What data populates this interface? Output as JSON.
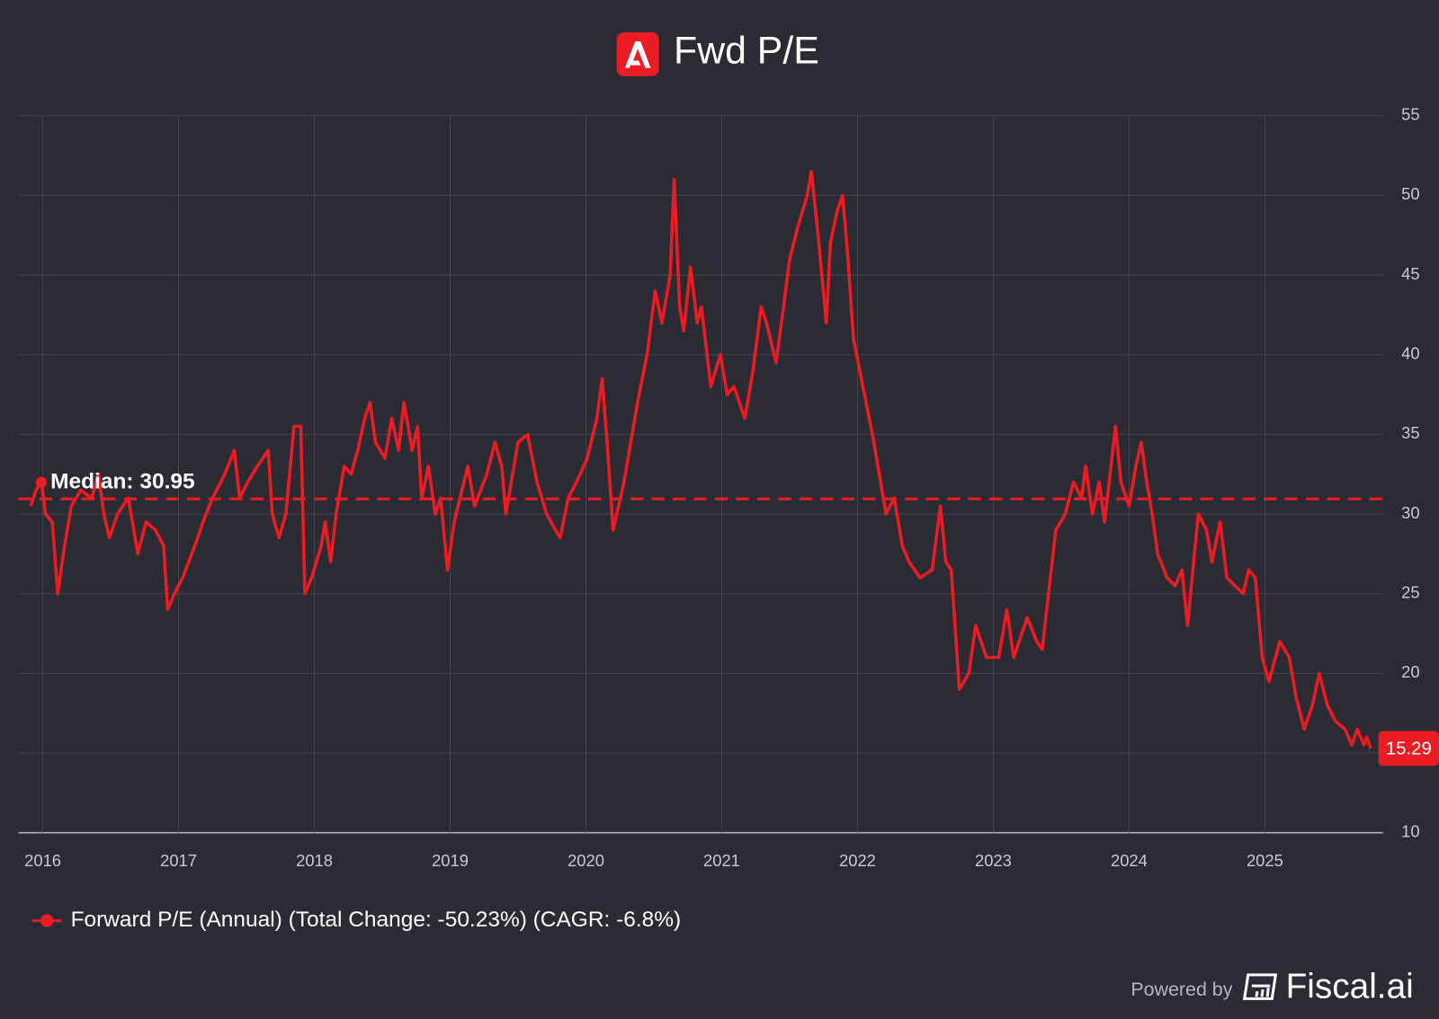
{
  "chart_data": {
    "type": "line",
    "title": "Fwd P/E",
    "xlim": [
      2015.82,
      2025.87
    ],
    "xticks": [
      2016,
      2017,
      2018,
      2019,
      2020,
      2021,
      2022,
      2023,
      2024,
      2025
    ],
    "ylim": [
      10,
      55
    ],
    "yticks": [
      10,
      15,
      20,
      25,
      30,
      35,
      40,
      45,
      50,
      55
    ],
    "grid": true,
    "median": {
      "value": 30.95,
      "label": "Median: 30.95"
    },
    "legend": "bottom-left",
    "x": [
      2015.91,
      2015.95,
      2015.99,
      2016.02,
      2016.07,
      2016.11,
      2016.16,
      2016.21,
      2016.28,
      2016.36,
      2016.41,
      2016.45,
      2016.49,
      2016.55,
      2016.63,
      2016.7,
      2016.76,
      2016.83,
      2016.89,
      2016.92,
      2016.97,
      2017.03,
      2017.12,
      2017.18,
      2017.25,
      2017.34,
      2017.41,
      2017.45,
      2017.51,
      2017.58,
      2017.66,
      2017.69,
      2017.74,
      2017.79,
      2017.85,
      2017.9,
      2017.93,
      2017.98,
      2018.05,
      2018.08,
      2018.12,
      2018.16,
      2018.22,
      2018.27,
      2018.32,
      2018.37,
      2018.41,
      2018.45,
      2018.52,
      2018.57,
      2018.62,
      2018.66,
      2018.72,
      2018.76,
      2018.79,
      2018.84,
      2018.89,
      2018.93,
      2018.98,
      2019.03,
      2019.13,
      2019.18,
      2019.27,
      2019.33,
      2019.38,
      2019.41,
      2019.5,
      2019.57,
      2019.64,
      2019.71,
      2019.81,
      2019.87,
      2019.93,
      2020.01,
      2020.08,
      2020.12,
      2020.16,
      2020.2,
      2020.28,
      2020.38,
      2020.45,
      2020.51,
      2020.56,
      2020.62,
      2020.65,
      2020.69,
      2020.72,
      2020.77,
      2020.82,
      2020.85,
      2020.92,
      2020.99,
      2021.04,
      2021.09,
      2021.17,
      2021.23,
      2021.29,
      2021.33,
      2021.4,
      2021.44,
      2021.5,
      2021.56,
      2021.63,
      2021.66,
      2021.71,
      2021.77,
      2021.8,
      2021.85,
      2021.89,
      2021.93,
      2021.97,
      2022.04,
      2022.11,
      2022.15,
      2022.21,
      2022.27,
      2022.33,
      2022.38,
      2022.46,
      2022.55,
      2022.61,
      2022.65,
      2022.69,
      2022.75,
      2022.82,
      2022.87,
      2022.95,
      2023.04,
      2023.1,
      2023.15,
      2023.25,
      2023.32,
      2023.36,
      2023.42,
      2023.46,
      2023.53,
      2023.59,
      2023.65,
      2023.68,
      2023.73,
      2023.78,
      2023.82,
      2023.88,
      2023.9,
      2023.94,
      2024.0,
      2024.05,
      2024.09,
      2024.13,
      2024.17,
      2024.21,
      2024.28,
      2024.34,
      2024.39,
      2024.43,
      2024.47,
      2024.51,
      2024.57,
      2024.61,
      2024.67,
      2024.72,
      2024.78,
      2024.84,
      2024.88,
      2024.93,
      2024.98,
      2025.03,
      2025.11,
      2025.18,
      2025.23,
      2025.29,
      2025.35,
      2025.4,
      2025.46,
      2025.52,
      2025.59,
      2025.64,
      2025.68,
      2025.73,
      2025.75,
      2025.78
    ],
    "series": [
      {
        "name": "Forward P/E (Annual) (Total Change: -50.23%) (CAGR: -6.8%)",
        "color": "#ec1c24",
        "values": [
          30.5,
          31.5,
          32,
          30,
          29.5,
          25,
          28,
          30.5,
          31.5,
          31,
          32.5,
          30,
          28.5,
          30,
          31,
          27.5,
          29.5,
          29,
          28,
          24,
          25,
          26,
          28,
          29.5,
          31,
          32.5,
          34,
          31,
          32,
          33,
          34,
          30,
          28.5,
          30,
          35.5,
          35.5,
          25,
          26,
          28,
          29.5,
          27,
          30,
          33,
          32.5,
          34,
          36,
          37,
          34.5,
          33.5,
          36,
          34,
          37,
          34,
          35.5,
          31,
          33,
          30,
          31,
          26.5,
          29.5,
          33,
          30.5,
          32.5,
          34.5,
          33,
          30,
          34.5,
          35,
          32,
          30,
          28.5,
          31,
          32,
          33.5,
          36,
          38.5,
          34,
          29,
          32,
          37,
          40,
          44,
          42,
          45,
          51,
          43,
          41.5,
          45.5,
          42,
          43,
          38,
          40,
          37.5,
          38,
          36,
          39,
          43,
          42,
          39.5,
          42,
          46,
          48,
          50,
          51.5,
          47.5,
          42,
          47,
          49,
          50,
          46,
          41,
          38,
          35,
          33,
          30,
          31,
          28,
          27,
          26,
          26.5,
          30.5,
          27,
          26.5,
          19,
          20,
          23,
          21,
          21,
          24,
          21,
          23.5,
          22,
          21.5,
          26,
          29,
          30,
          32,
          31,
          33,
          30,
          32,
          29.5,
          34,
          35.5,
          32,
          30.5,
          33,
          34.5,
          32,
          30,
          27.5,
          26,
          25.5,
          26.5,
          23,
          26.5,
          30,
          29,
          27,
          29.5,
          26,
          25.5,
          25,
          26.5,
          26,
          21,
          19.5,
          22,
          21,
          18.5,
          16.5,
          18,
          20,
          18,
          17,
          16.5,
          15.5,
          16.5,
          15.5,
          16,
          15.29
        ]
      }
    ],
    "footer": {
      "prefix": "Powered by",
      "brand": "Fiscal.ai"
    }
  }
}
